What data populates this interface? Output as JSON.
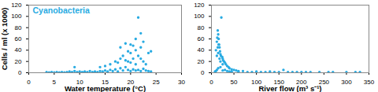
{
  "chart_data": [
    {
      "type": "scatter",
      "title": "Cyanobacteria",
      "x_label": "Water temperature (°C)",
      "y_label": "Cells / ml (x 1000)",
      "color": "#29abe2",
      "marker": "circle",
      "grid": false,
      "xlim": [
        0,
        30
      ],
      "xticks": [
        0,
        5,
        10,
        15,
        20,
        25,
        30
      ],
      "ylim": [
        0,
        120
      ],
      "yticks": [
        0,
        20,
        40,
        60,
        80,
        100,
        120
      ],
      "x": [
        3.5,
        4,
        4.5,
        5,
        5.5,
        6,
        6.5,
        7,
        7.5,
        8,
        8.5,
        9,
        9.5,
        10,
        10.5,
        11,
        11.5,
        12,
        12.5,
        13,
        13.5,
        14,
        14.5,
        15,
        15.5,
        16,
        16.5,
        17,
        17.5,
        18,
        18.5,
        19,
        19.5,
        20,
        20.5,
        21,
        21.5,
        22,
        22.5,
        23,
        23.5,
        24,
        9,
        14,
        15,
        16,
        17,
        17.5,
        18,
        18.5,
        19,
        19,
        19.5,
        20,
        20,
        20.5,
        20.5,
        21,
        21,
        21.5,
        21.5,
        22,
        22,
        22.5,
        22.5,
        23,
        23.5,
        24,
        20,
        19.5,
        21,
        22,
        18
      ],
      "values": [
        1,
        0.5,
        1,
        0.5,
        1,
        0.5,
        1,
        0.5,
        1,
        2,
        1,
        3,
        1,
        2,
        1,
        2,
        1,
        3,
        1,
        2,
        1,
        3,
        2,
        4,
        2,
        5,
        3,
        6,
        2,
        8,
        4,
        10,
        5,
        3,
        6,
        4,
        5,
        3,
        7,
        4,
        3,
        2,
        10,
        10,
        12,
        15,
        20,
        18,
        25,
        30,
        22,
        52,
        20,
        50,
        35,
        48,
        25,
        40,
        60,
        98,
        30,
        70,
        45,
        55,
        20,
        15,
        35,
        38,
        18,
        38,
        15,
        25,
        45
      ]
    },
    {
      "type": "scatter",
      "x_label": "River flow (m³ s⁻¹)",
      "color": "#29abe2",
      "marker": "circle",
      "grid": false,
      "xlim": [
        0,
        350
      ],
      "xticks": [
        0,
        50,
        100,
        150,
        200,
        250,
        300,
        350
      ],
      "ylim": [
        0,
        120
      ],
      "yticks": [
        0,
        20,
        40,
        60,
        80,
        100,
        120
      ],
      "x": [
        10,
        12,
        14,
        15,
        16,
        17,
        18,
        19,
        20,
        22,
        21,
        24,
        25,
        26,
        28,
        30,
        32,
        35,
        38,
        40,
        45,
        50,
        55,
        60,
        70,
        12,
        15,
        18,
        20,
        25,
        14,
        16,
        13,
        8,
        10,
        12,
        15,
        20,
        30,
        40,
        60,
        80,
        90,
        100,
        110,
        120,
        130,
        140,
        150,
        160,
        170,
        180,
        190,
        200,
        210,
        220,
        240,
        260,
        270,
        300,
        320,
        330,
        25,
        35,
        45
      ],
      "values": [
        40,
        55,
        75,
        68,
        60,
        50,
        45,
        38,
        33,
        98,
        30,
        28,
        25,
        22,
        20,
        18,
        15,
        12,
        10,
        8,
        6,
        5,
        4,
        3,
        3,
        30,
        35,
        25,
        20,
        15,
        45,
        50,
        62,
        2,
        3,
        5,
        8,
        10,
        5,
        2,
        2,
        1,
        1,
        2,
        1,
        1,
        2,
        1,
        1,
        5,
        1,
        1,
        1,
        1,
        1,
        1,
        1,
        1,
        1,
        1,
        1,
        1,
        4,
        3,
        2
      ]
    }
  ]
}
